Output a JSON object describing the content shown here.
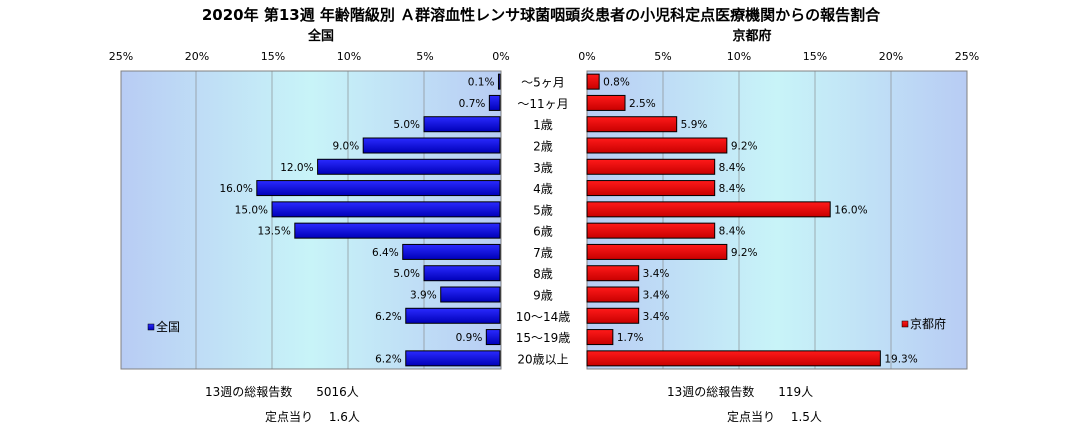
{
  "title": "2020年 第13週 年齢階級別 Ａ群溶血性レンサ球菌咽頭炎患者の小児科定点医療機関からの報告割合",
  "chart_data": [
    {
      "type": "bar",
      "orientation": "horizontal",
      "direction": "right-to-left",
      "title": "全国",
      "categories": [
        "～5ヶ月",
        "～11ヶ月",
        "1歳",
        "2歳",
        "3歳",
        "4歳",
        "5歳",
        "6歳",
        "7歳",
        "8歳",
        "9歳",
        "10～14歳",
        "15～19歳",
        "20歳以上"
      ],
      "series": [
        {
          "name": "全国",
          "values": [
            0.1,
            0.7,
            5.0,
            9.0,
            12.0,
            16.0,
            15.0,
            13.5,
            6.4,
            5.0,
            3.9,
            6.2,
            0.9,
            6.2
          ]
        }
      ],
      "data_labels": [
        "0.1%",
        "0.7%",
        "5.0%",
        "9.0%",
        "12.0%",
        "16.0%",
        "15.0%",
        "13.5%",
        "6.4%",
        "5.0%",
        "3.9%",
        "6.2%",
        "0.9%",
        "6.2%"
      ],
      "xlim": [
        0,
        25
      ],
      "x_ticks": [
        "25%",
        "20%",
        "15%",
        "10%",
        "5%",
        "0%"
      ],
      "grid": true,
      "legend_position": "bottom-left",
      "color": "#0000d0"
    },
    {
      "type": "bar",
      "orientation": "horizontal",
      "direction": "left-to-right",
      "title": "京都府",
      "categories": [
        "～5ヶ月",
        "～11ヶ月",
        "1歳",
        "2歳",
        "3歳",
        "4歳",
        "5歳",
        "6歳",
        "7歳",
        "8歳",
        "9歳",
        "10～14歳",
        "15～19歳",
        "20歳以上"
      ],
      "series": [
        {
          "name": "京都府",
          "values": [
            0.8,
            2.5,
            5.9,
            9.2,
            8.4,
            8.4,
            16.0,
            8.4,
            9.2,
            3.4,
            3.4,
            3.4,
            1.7,
            19.3
          ]
        }
      ],
      "data_labels": [
        "0.8%",
        "2.5%",
        "5.9%",
        "9.2%",
        "8.4%",
        "8.4%",
        "16.0%",
        "8.4%",
        "9.2%",
        "3.4%",
        "3.4%",
        "3.4%",
        "1.7%",
        "19.3%"
      ],
      "xlim": [
        0,
        25
      ],
      "x_ticks": [
        "0%",
        "5%",
        "10%",
        "15%",
        "20%",
        "25%"
      ],
      "grid": true,
      "legend_position": "bottom-right",
      "color": "#e00000"
    }
  ],
  "footer": {
    "left_total": "13週の総報告数　　5016人",
    "left_per": "定点当り　 1.6人",
    "right_total": "13週の総報告数　　119人",
    "right_per": "定点当り　 1.5人"
  }
}
